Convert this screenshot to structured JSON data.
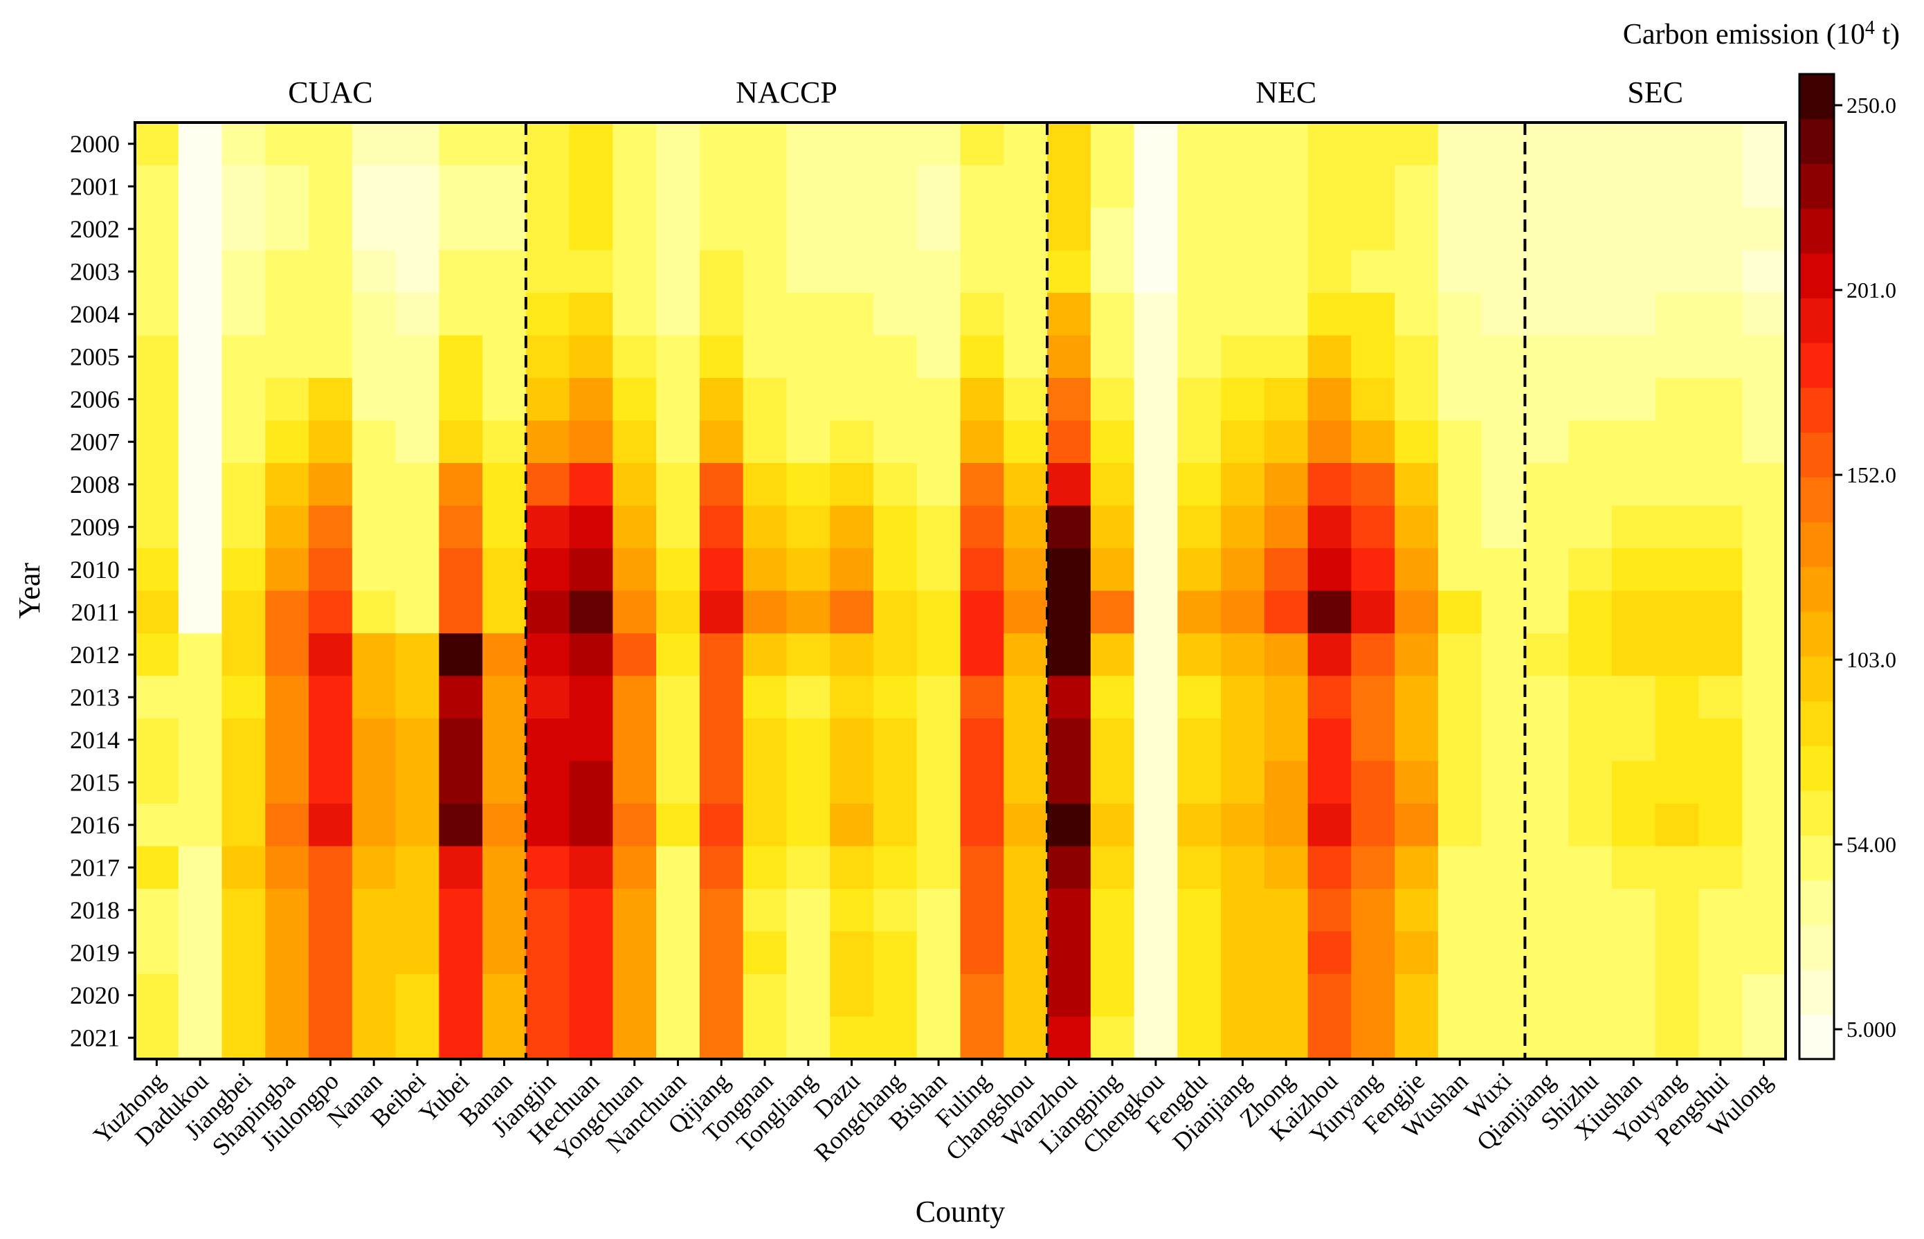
{
  "chart_data": {
    "type": "heatmap",
    "title": "",
    "xlabel": "County",
    "ylabel": "Year",
    "colorbar": {
      "title": "Carbon emission (10",
      "title_sup": "4",
      "title_suffix": " t)",
      "ticks": [
        "250.0",
        "201.0",
        "152.0",
        "103.0",
        "54.00",
        "5.000"
      ],
      "tick_values": [
        250.0,
        201.0,
        152.0,
        103.0,
        54.0,
        5.0
      ],
      "range": [
        5.0,
        250.0
      ],
      "levels": 22
    },
    "years": [
      "2000",
      "2001",
      "2002",
      "2003",
      "2004",
      "2005",
      "2006",
      "2007",
      "2008",
      "2009",
      "2010",
      "2011",
      "2012",
      "2013",
      "2014",
      "2015",
      "2016",
      "2017",
      "2018",
      "2019",
      "2020",
      "2021"
    ],
    "counties": [
      "Yuzhong",
      "Dadukou",
      "Jiangbei",
      "Shapingba",
      "Jiulongpo",
      "Nanan",
      "Beibei",
      "Yubei",
      "Banan",
      "Jiangjin",
      "Hechuan",
      "Yongchuan",
      "Nanchuan",
      "Qijiang",
      "Tongnan",
      "Tongliang",
      "Dazu",
      "Rongchang",
      "Bishan",
      "Fuling",
      "Changshou",
      "Wanzhou",
      "Liangping",
      "Chengkou",
      "Fengdu",
      "Dianjiang",
      "Zhong",
      "Kaizhou",
      "Yunyang",
      "Fengjie",
      "Wushan",
      "Wuxi",
      "Qianjiang",
      "Shizhu",
      "Xiushan",
      "Youyang",
      "Pengshui",
      "Wulong"
    ],
    "regions": [
      {
        "label": "CUAC",
        "start": 0,
        "end": 8
      },
      {
        "label": "NACCP",
        "start": 9,
        "end": 20
      },
      {
        "label": "NEC",
        "start": 21,
        "end": 31
      },
      {
        "label": "SEC",
        "start": 32,
        "end": 37
      }
    ],
    "values": [
      [
        65,
        10,
        40,
        50,
        50,
        30,
        30,
        50,
        50,
        70,
        80,
        60,
        45,
        60,
        50,
        45,
        45,
        45,
        40,
        65,
        55,
        90,
        55,
        12,
        55,
        55,
        60,
        70,
        70,
        65,
        35,
        35,
        30,
        30,
        35,
        35,
        35,
        25
      ],
      [
        60,
        5,
        35,
        45,
        50,
        25,
        25,
        45,
        45,
        70,
        75,
        55,
        40,
        55,
        50,
        40,
        40,
        40,
        35,
        60,
        50,
        90,
        50,
        5,
        50,
        50,
        55,
        70,
        65,
        60,
        35,
        30,
        30,
        30,
        30,
        30,
        30,
        25
      ],
      [
        55,
        5,
        35,
        45,
        50,
        25,
        25,
        45,
        45,
        70,
        75,
        55,
        40,
        55,
        50,
        40,
        40,
        40,
        35,
        60,
        50,
        85,
        45,
        8,
        50,
        55,
        55,
        70,
        65,
        60,
        35,
        30,
        30,
        30,
        35,
        35,
        35,
        30
      ],
      [
        55,
        5,
        40,
        50,
        55,
        30,
        25,
        50,
        50,
        65,
        70,
        55,
        45,
        65,
        50,
        45,
        45,
        40,
        40,
        60,
        50,
        75,
        45,
        8,
        50,
        55,
        55,
        65,
        60,
        55,
        35,
        30,
        30,
        30,
        35,
        35,
        35,
        20
      ],
      [
        60,
        5,
        45,
        55,
        55,
        40,
        35,
        60,
        50,
        75,
        85,
        60,
        45,
        65,
        55,
        50,
        50,
        45,
        40,
        65,
        55,
        110,
        55,
        20,
        60,
        60,
        60,
        80,
        75,
        60,
        40,
        35,
        35,
        35,
        35,
        40,
        40,
        30
      ],
      [
        65,
        5,
        50,
        60,
        60,
        45,
        40,
        75,
        55,
        85,
        100,
        65,
        50,
        80,
        60,
        50,
        55,
        50,
        45,
        80,
        60,
        120,
        60,
        20,
        60,
        65,
        70,
        100,
        80,
        65,
        45,
        40,
        40,
        40,
        40,
        45,
        45,
        40
      ],
      [
        65,
        10,
        55,
        70,
        85,
        45,
        40,
        80,
        60,
        100,
        120,
        75,
        60,
        95,
        65,
        55,
        60,
        55,
        50,
        95,
        70,
        140,
        65,
        25,
        65,
        75,
        85,
        120,
        90,
        70,
        45,
        40,
        40,
        45,
        45,
        50,
        50,
        40
      ],
      [
        65,
        10,
        60,
        80,
        95,
        50,
        45,
        90,
        65,
        120,
        135,
        85,
        60,
        110,
        70,
        60,
        65,
        60,
        55,
        110,
        80,
        155,
        75,
        25,
        70,
        85,
        95,
        130,
        110,
        80,
        50,
        40,
        45,
        50,
        50,
        50,
        50,
        45
      ],
      [
        70,
        10,
        70,
        100,
        120,
        60,
        55,
        130,
        75,
        160,
        180,
        100,
        65,
        150,
        90,
        80,
        90,
        70,
        60,
        140,
        100,
        190,
        90,
        25,
        80,
        100,
        120,
        170,
        150,
        100,
        55,
        45,
        50,
        55,
        60,
        60,
        60,
        50
      ],
      [
        70,
        10,
        70,
        110,
        140,
        60,
        55,
        140,
        80,
        185,
        200,
        110,
        70,
        170,
        100,
        90,
        110,
        75,
        65,
        155,
        110,
        230,
        100,
        25,
        90,
        110,
        130,
        190,
        170,
        110,
        55,
        45,
        55,
        60,
        65,
        65,
        65,
        50
      ],
      [
        75,
        10,
        75,
        120,
        150,
        60,
        60,
        150,
        85,
        200,
        215,
        120,
        75,
        180,
        110,
        100,
        120,
        80,
        65,
        165,
        120,
        240,
        110,
        25,
        100,
        120,
        150,
        205,
        175,
        120,
        60,
        50,
        60,
        70,
        75,
        75,
        75,
        55
      ],
      [
        90,
        15,
        85,
        140,
        165,
        65,
        60,
        150,
        90,
        210,
        230,
        130,
        85,
        185,
        130,
        120,
        145,
        90,
        75,
        175,
        130,
        250,
        140,
        25,
        120,
        135,
        165,
        230,
        185,
        130,
        75,
        55,
        60,
        75,
        90,
        90,
        85,
        60
      ],
      [
        80,
        50,
        90,
        140,
        185,
        110,
        100,
        240,
        130,
        200,
        215,
        150,
        80,
        160,
        100,
        90,
        100,
        90,
        75,
        180,
        110,
        250,
        100,
        25,
        100,
        110,
        120,
        190,
        160,
        120,
        70,
        55,
        70,
        80,
        90,
        90,
        85,
        60
      ],
      [
        60,
        50,
        80,
        130,
        175,
        110,
        100,
        215,
        120,
        190,
        200,
        130,
        65,
        155,
        80,
        70,
        90,
        80,
        70,
        160,
        100,
        215,
        80,
        25,
        80,
        100,
        110,
        170,
        140,
        110,
        65,
        55,
        60,
        65,
        70,
        75,
        70,
        55
      ],
      [
        65,
        50,
        85,
        130,
        175,
        120,
        110,
        225,
        125,
        195,
        205,
        135,
        70,
        160,
        85,
        75,
        95,
        85,
        70,
        165,
        100,
        220,
        85,
        25,
        90,
        105,
        115,
        175,
        145,
        115,
        70,
        55,
        60,
        65,
        70,
        80,
        75,
        55
      ],
      [
        65,
        50,
        90,
        135,
        180,
        125,
        115,
        225,
        125,
        200,
        210,
        135,
        70,
        160,
        90,
        80,
        100,
        85,
        70,
        165,
        105,
        225,
        90,
        25,
        90,
        105,
        120,
        175,
        150,
        120,
        70,
        55,
        60,
        65,
        75,
        80,
        75,
        55
      ],
      [
        60,
        50,
        90,
        140,
        190,
        125,
        115,
        235,
        130,
        195,
        210,
        140,
        75,
        165,
        90,
        80,
        110,
        90,
        70,
        170,
        110,
        250,
        95,
        25,
        95,
        110,
        125,
        185,
        155,
        130,
        70,
        55,
        60,
        65,
        75,
        85,
        80,
        55
      ],
      [
        75,
        45,
        95,
        135,
        160,
        115,
        105,
        190,
        125,
        175,
        185,
        130,
        60,
        150,
        75,
        65,
        85,
        80,
        65,
        160,
        100,
        220,
        85,
        25,
        85,
        100,
        110,
        165,
        140,
        115,
        60,
        50,
        55,
        60,
        65,
        70,
        65,
        50
      ],
      [
        60,
        45,
        90,
        120,
        155,
        105,
        95,
        175,
        120,
        165,
        175,
        120,
        55,
        140,
        70,
        60,
        80,
        70,
        55,
        150,
        95,
        210,
        80,
        25,
        80,
        95,
        105,
        160,
        130,
        105,
        60,
        50,
        55,
        60,
        60,
        65,
        60,
        50
      ],
      [
        60,
        45,
        90,
        125,
        160,
        105,
        95,
        180,
        120,
        170,
        180,
        125,
        55,
        145,
        75,
        60,
        85,
        75,
        55,
        150,
        95,
        215,
        80,
        25,
        80,
        95,
        105,
        165,
        135,
        110,
        60,
        50,
        55,
        60,
        60,
        70,
        60,
        50
      ],
      [
        65,
        45,
        85,
        125,
        155,
        100,
        90,
        180,
        115,
        170,
        180,
        120,
        50,
        140,
        70,
        55,
        85,
        75,
        55,
        145,
        95,
        210,
        75,
        25,
        80,
        95,
        105,
        160,
        130,
        105,
        60,
        50,
        55,
        60,
        60,
        65,
        60,
        45
      ],
      [
        65,
        45,
        85,
        125,
        150,
        100,
        90,
        175,
        115,
        165,
        175,
        120,
        50,
        140,
        70,
        55,
        80,
        75,
        55,
        145,
        95,
        205,
        70,
        25,
        80,
        95,
        105,
        160,
        130,
        105,
        60,
        50,
        55,
        60,
        60,
        65,
        60,
        45
      ]
    ]
  }
}
